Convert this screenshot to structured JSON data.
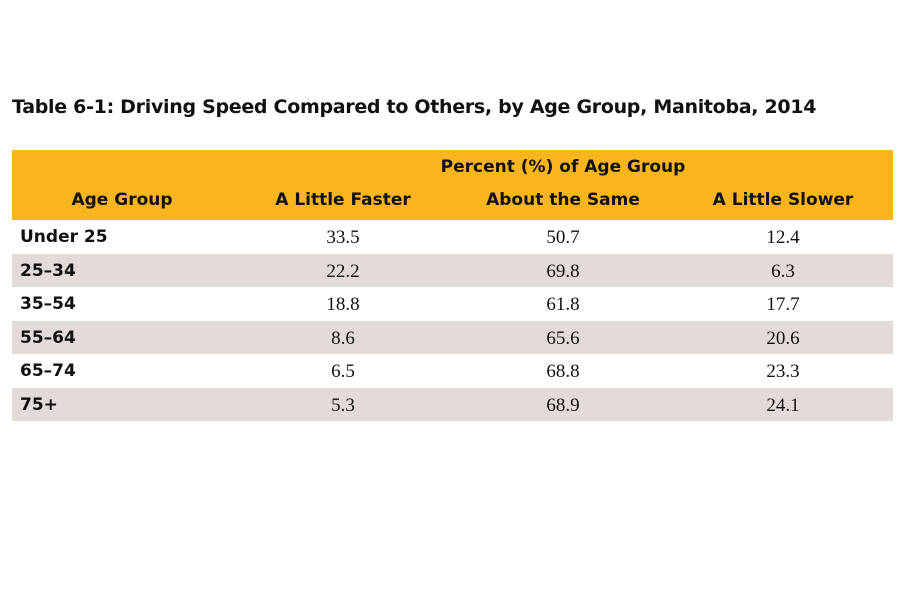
{
  "title": "Table 6-1: Driving Speed Compared to Others, by Age Group, Manitoba, 2014",
  "table": {
    "group_header": "Percent (%) of Age Group",
    "columns": [
      "Age Group",
      "A Little Faster",
      "About the Same",
      "A Little Slower"
    ],
    "rows": [
      [
        "Under 25",
        "33.5",
        "50.7",
        "12.4"
      ],
      [
        "25–34",
        "22.2",
        "69.8",
        "6.3"
      ],
      [
        "35–54",
        "18.8",
        "61.8",
        "17.7"
      ],
      [
        "55–64",
        "8.6",
        "65.6",
        "20.6"
      ],
      [
        "65–74",
        "6.5",
        "68.8",
        "23.3"
      ],
      [
        "75+",
        "5.3",
        "68.9",
        "24.1"
      ]
    ]
  }
}
